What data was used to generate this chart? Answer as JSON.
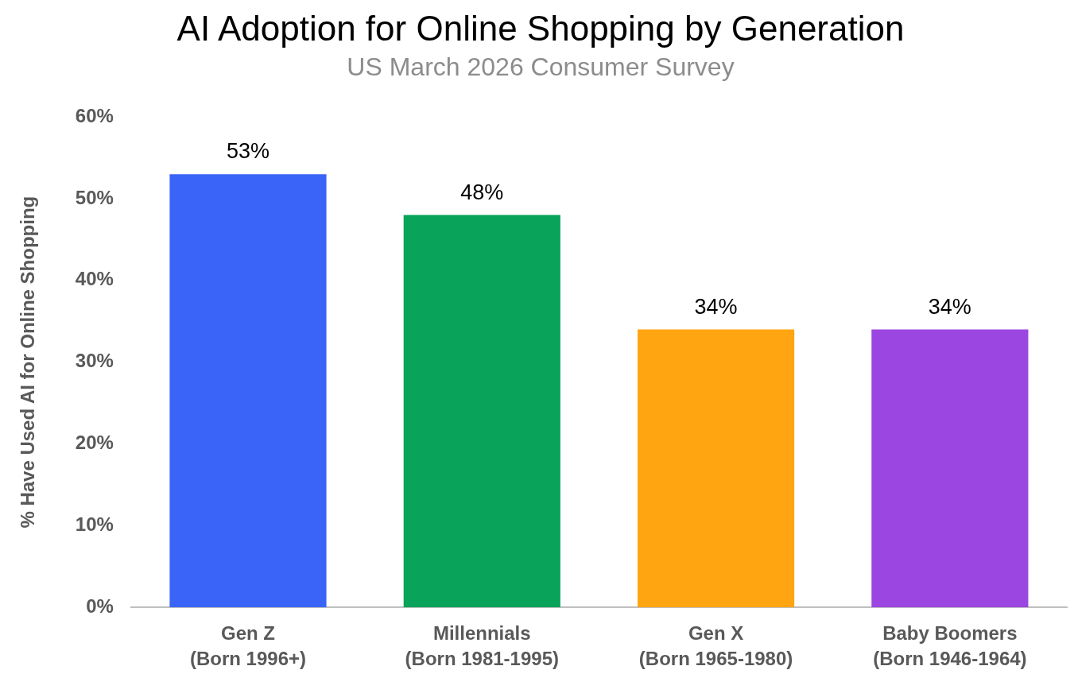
{
  "chart_data": {
    "type": "bar",
    "title": "AI Adoption for Online Shopping by Generation",
    "subtitle": "US March 2026 Consumer Survey",
    "ylabel": "% Have Used AI for Online Shopping",
    "categories": [
      "Gen Z\n(Born 1996+)",
      "Millennials\n(Born 1981-1995)",
      "Gen X\n(Born 1965-1980)",
      "Baby Boomers\n(Born 1946-1964)"
    ],
    "values": [
      53,
      48,
      34,
      34
    ],
    "colors": [
      "#3a64f7",
      "#0aa35a",
      "#ffa512",
      "#9b46e0"
    ],
    "value_labels": [
      "53%",
      "48%",
      "34%",
      "34%"
    ],
    "ylim": [
      0,
      60
    ],
    "yticks": [
      {
        "value": 0,
        "label": "0%"
      },
      {
        "value": 10,
        "label": "10%"
      },
      {
        "value": 20,
        "label": "20%"
      },
      {
        "value": 30,
        "label": "30%"
      },
      {
        "value": 40,
        "label": "40%"
      },
      {
        "value": 50,
        "label": "50%"
      },
      {
        "value": 60,
        "label": "60%"
      }
    ]
  }
}
